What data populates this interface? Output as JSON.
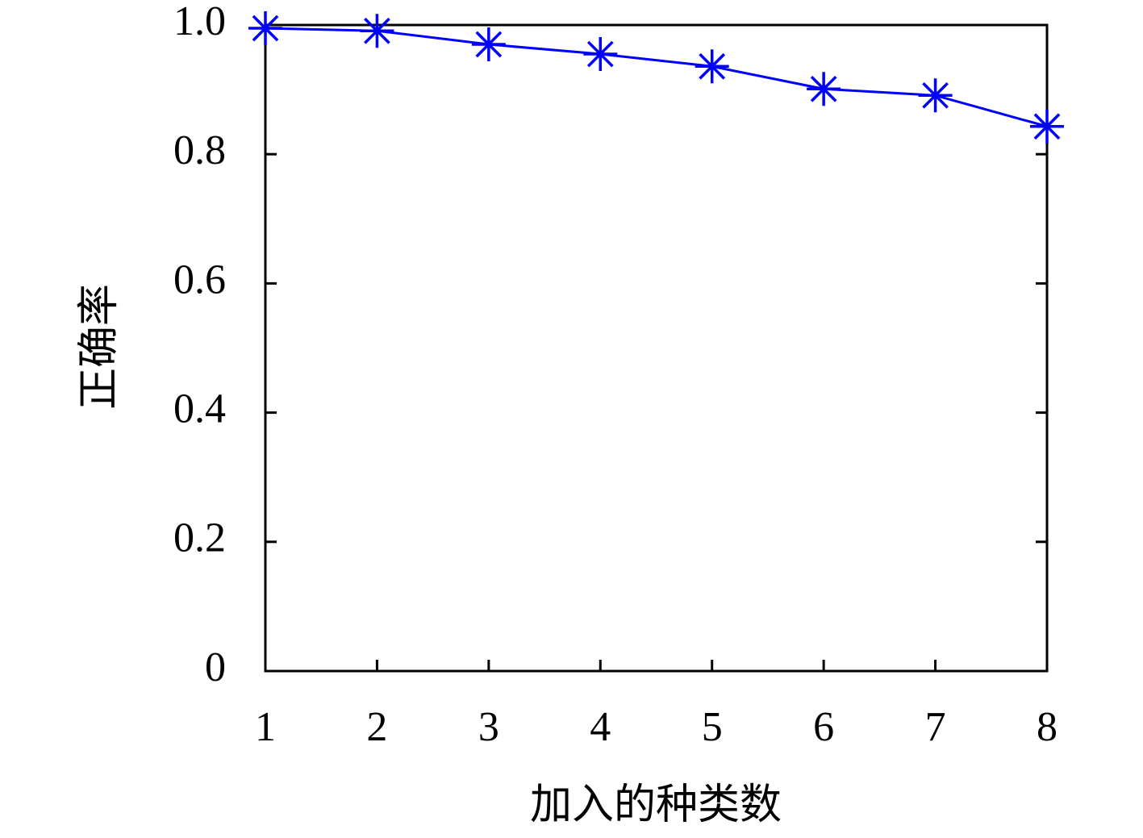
{
  "chart_data": {
    "type": "line",
    "xlabel": "加入的种类数",
    "ylabel": "正确率",
    "x": [
      1,
      2,
      3,
      4,
      5,
      6,
      7,
      8
    ],
    "values": [
      0.995,
      0.991,
      0.97,
      0.955,
      0.936,
      0.901,
      0.891,
      0.843
    ],
    "color": "#0000ff",
    "marker": "star",
    "xlim": [
      1,
      8
    ],
    "xticks": [
      1,
      2,
      3,
      4,
      5,
      6,
      7,
      8
    ],
    "ylim": [
      0,
      1
    ],
    "yticks": [
      0,
      0.2,
      0.4,
      0.6,
      0.8,
      {
        "value": 1,
        "label": "1.0"
      }
    ],
    "grid": false
  }
}
